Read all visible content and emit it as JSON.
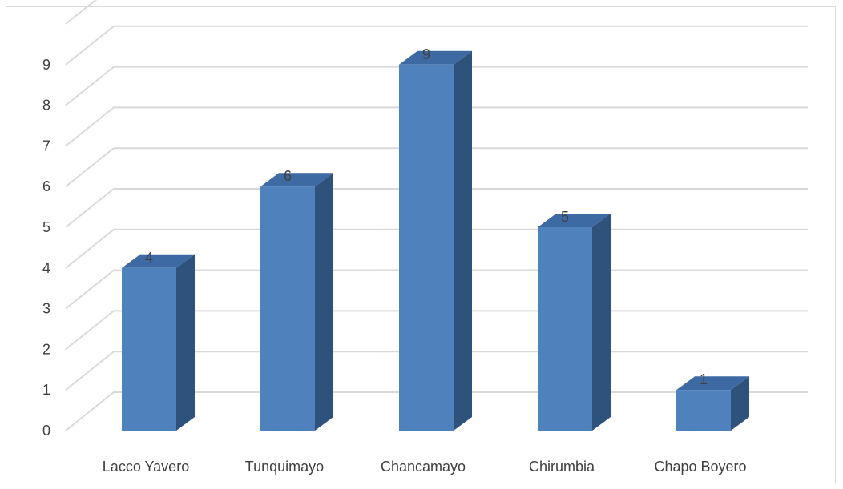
{
  "chart_data": {
    "type": "bar",
    "style": "3d-column",
    "categories": [
      "Lacco Yavero",
      "Tunquimayo",
      "Chancamayo",
      "Chirumbia",
      "Chapo Boyero"
    ],
    "values": [
      4,
      6,
      9,
      5,
      1
    ],
    "y_ticks": [
      "0",
      "1",
      "2",
      "3",
      "4",
      "5",
      "6",
      "7",
      "8",
      "9"
    ],
    "ylim": [
      0,
      9
    ],
    "grid": true,
    "legend": "none",
    "title": "",
    "xlabel": "",
    "ylabel": "",
    "colors": {
      "bar_front": "#4f81bd",
      "bar_top": "#3e6aa3",
      "bar_side": "#2f527c",
      "gridline": "#d9d9d9",
      "text": "#404040"
    }
  }
}
